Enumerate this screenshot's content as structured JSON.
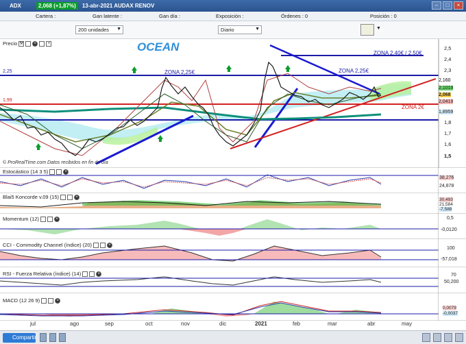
{
  "window": {
    "symbol": "ADX",
    "price_change": "2,068 (+1,87%)",
    "date_name": "13-abr-2021 AUDAX RENOV"
  },
  "info": {
    "cartera": "Cartera :",
    "ganlatente": "Gan latente :",
    "gandia": "Gan día :",
    "exposicion": "Exposición :",
    "ordenes": "Órdenes : 0",
    "posicion": "Posición : 0"
  },
  "controls": {
    "units": "200 unidades",
    "period": "Diario"
  },
  "main": {
    "title": "Precio",
    "ocean": "OCEAN",
    "footer": "© ProRealTime.com  Datos recibidos en fin de día",
    "annotations": {
      "zona225_left": "ZONA 2,25€",
      "zona225_right": "ZONA 2,25€",
      "zona240": "ZONA 2,40€ / 2,50€",
      "zona2": "ZONA 2€",
      "level_225": "2,25",
      "level_199": "1,99"
    },
    "yticks": [
      "2,5",
      "2,4",
      "2,3",
      "2,2",
      "2,1",
      "2",
      "1,9",
      "1,8",
      "1,7",
      "1,6",
      "1,5"
    ],
    "right_values": [
      "2,160",
      "2,1019",
      "2,068",
      "2,0419",
      "1,8959"
    ]
  },
  "indicators": [
    {
      "title": "Estocástico (14 3 5)",
      "values": [
        "38,276",
        "24,878"
      ]
    },
    {
      "title": "Blai5 Koncorde v.09 (15)",
      "values": [
        "30,493",
        "21,584",
        "-7,588"
      ]
    },
    {
      "title": "Momentum (12)",
      "values": [
        "0,5",
        "-0,0120"
      ]
    },
    {
      "title": "CCI - Commodity Channel (índice) (20)",
      "values": [
        "100",
        "-57,018"
      ]
    },
    {
      "title": "RSI - Fuerza Relativa (índice) (14)",
      "values": [
        "70",
        "50,200"
      ]
    },
    {
      "title": "MACD (12 26 9)",
      "values": [
        "0,0079",
        "-0,0037"
      ]
    }
  ],
  "xaxis": [
    "jul",
    "ago",
    "sep",
    "oct",
    "nov",
    "dic",
    "2021",
    "feb",
    "mar",
    "abr",
    "may"
  ],
  "status": {
    "share": "Compartir"
  }
}
